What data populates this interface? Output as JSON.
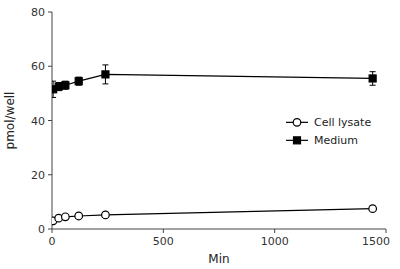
{
  "chart_data": {
    "type": "line",
    "xlabel": "Min",
    "ylabel": "pmol/well",
    "x": [
      5,
      30,
      60,
      120,
      240,
      1440
    ],
    "series": [
      {
        "name": "Cell lysate",
        "color": "#000000",
        "marker": "open_circle",
        "line_style": "solid",
        "values": [
          3.0,
          4.0,
          4.5,
          4.8,
          5.2,
          7.5
        ],
        "errors": [
          0.3,
          0.4,
          0.3,
          0.3,
          0.3,
          0.4
        ]
      },
      {
        "name": "Medium",
        "color": "#000000",
        "marker": "square",
        "line_style": "solid",
        "values": [
          51.5,
          52.5,
          53.0,
          54.5,
          57.0,
          55.5
        ],
        "errors": [
          3.0,
          1.5,
          1.5,
          1.5,
          3.5,
          2.5
        ]
      }
    ],
    "xlim": [
      0,
      1500
    ],
    "xticks": [
      0,
      500,
      1000,
      1500
    ],
    "ylim": [
      0,
      80
    ],
    "yticks": [
      0,
      20,
      40,
      60,
      80
    ],
    "grid": false,
    "legend": "right"
  }
}
